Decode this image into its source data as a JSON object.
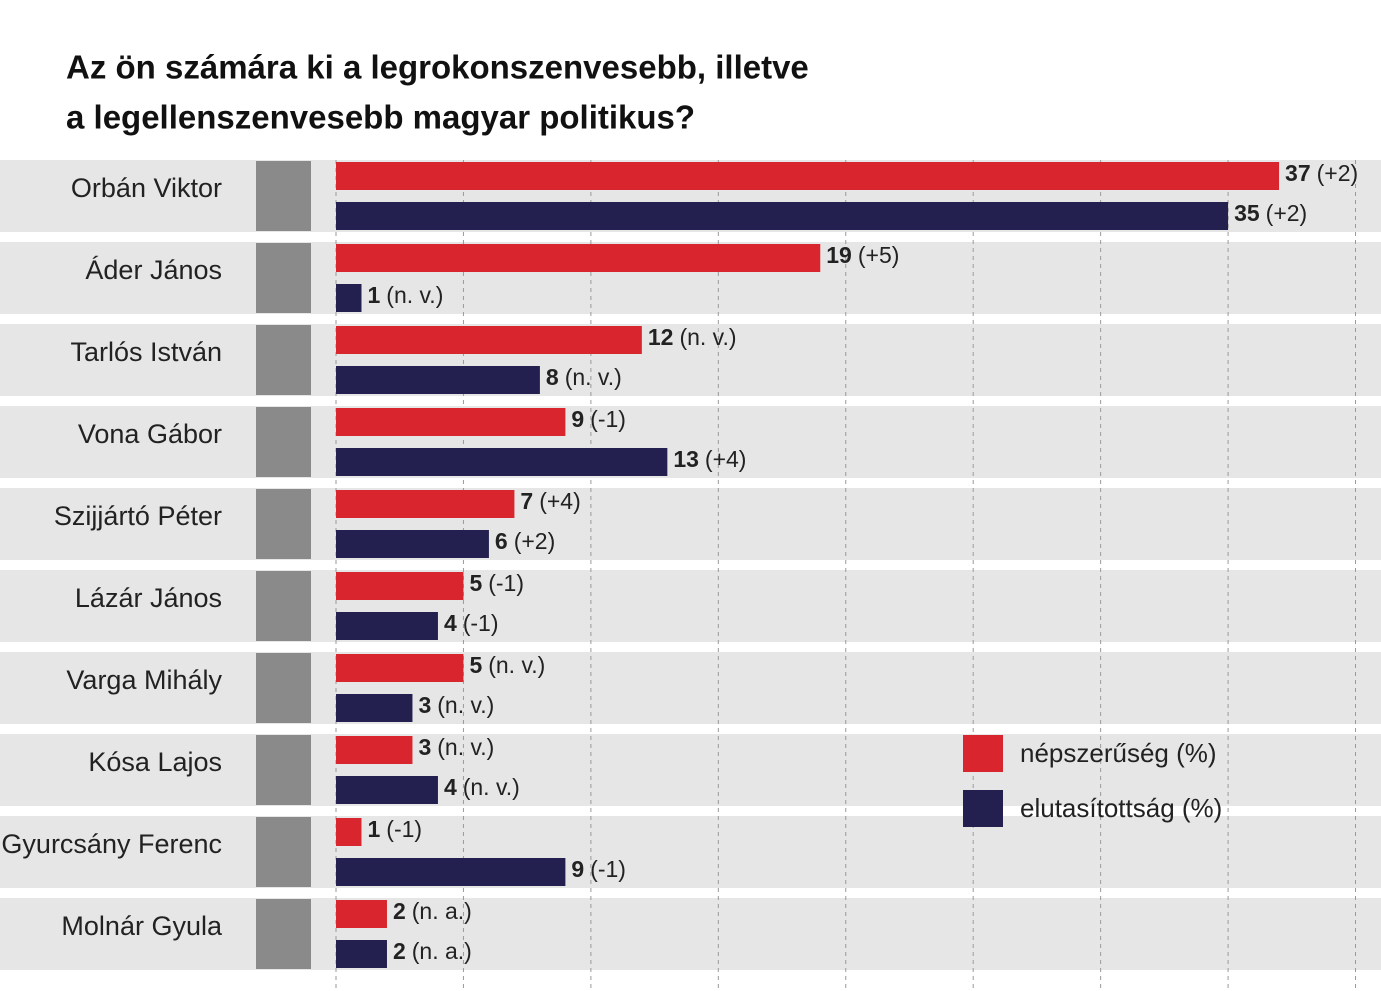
{
  "chart_data": {
    "type": "bar",
    "orientation": "horizontal",
    "title": [
      "Az ön számára ki a legrokonszenvesebb, illetve",
      "a legellenszenvesebb magyar politikus?"
    ],
    "categories": [
      "Orbán Viktor",
      "Áder János",
      "Tarlós István",
      "Vona Gábor",
      "Szijjártó Péter",
      "Lázár János",
      "Varga Mihály",
      "Kósa Lajos",
      "Gyurcsány Ferenc",
      "Molnár Gyula"
    ],
    "series": [
      {
        "name": "népszerűség (%)",
        "color": "#d9262e",
        "values": [
          37,
          19,
          12,
          9,
          7,
          5,
          5,
          3,
          1,
          2
        ],
        "changes": [
          "(+2)",
          "(+5)",
          "(n. v.)",
          "(-1)",
          "(+4)",
          "(-1)",
          "(n. v.)",
          "(n. v.)",
          "(-1)",
          "(n. a.)"
        ]
      },
      {
        "name": "elutasítottság (%)",
        "color": "#23204f",
        "values": [
          35,
          1,
          8,
          13,
          6,
          4,
          3,
          4,
          9,
          2
        ],
        "changes": [
          "(+2)",
          "(n. v.)",
          "(n. v.)",
          "(+4)",
          "(+2)",
          "(-1)",
          "(n. v.)",
          "(n. v.)",
          "(-1)",
          "(n. a.)"
        ]
      }
    ],
    "xlim": [
      0,
      41
    ],
    "xticks": [
      0,
      5,
      10,
      15,
      20,
      25,
      30,
      35,
      40
    ],
    "grid": true,
    "legend": "lower right"
  }
}
